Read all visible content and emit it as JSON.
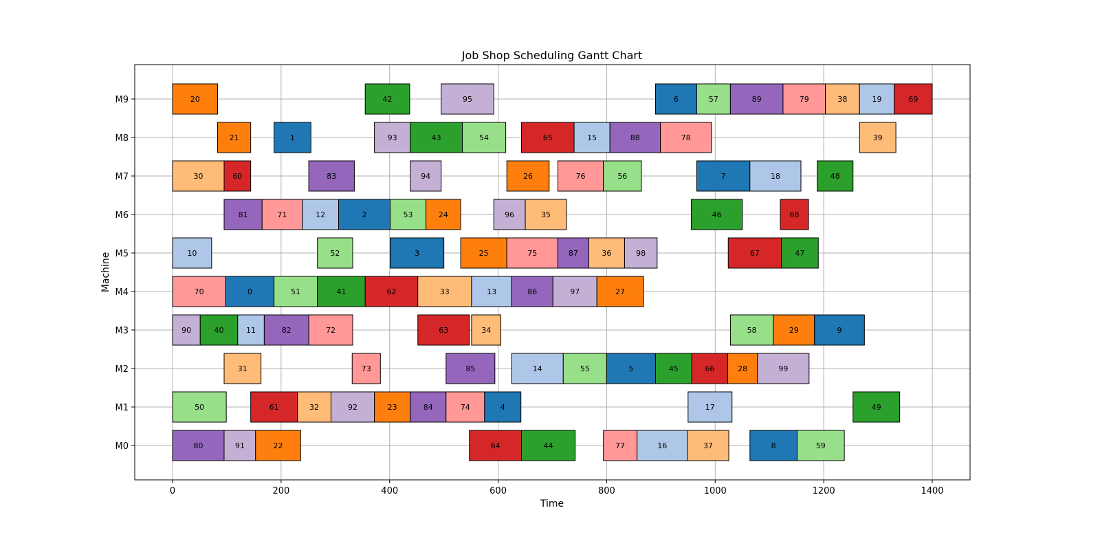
{
  "chart_data": {
    "type": "gantt",
    "title": "Job Shop Scheduling Gantt Chart",
    "xlabel": "Time",
    "ylabel": "Machine",
    "xlim": [
      -70,
      1470
    ],
    "x_ticks": [
      0,
      200,
      400,
      600,
      800,
      1000,
      1200,
      1400
    ],
    "machines": [
      "M0",
      "M1",
      "M2",
      "M3",
      "M4",
      "M5",
      "M6",
      "M7",
      "M8",
      "M9"
    ],
    "grid": true,
    "tasks": [
      {
        "machine": "M0",
        "job": "80",
        "start": 0,
        "end": 95,
        "color": "#9467bd"
      },
      {
        "machine": "M0",
        "job": "91",
        "start": 95,
        "end": 153,
        "color": "#c5b0d5"
      },
      {
        "machine": "M0",
        "job": "22",
        "start": 153,
        "end": 236,
        "color": "#ff7f0e"
      },
      {
        "machine": "M0",
        "job": "64",
        "start": 547,
        "end": 643,
        "color": "#d62728"
      },
      {
        "machine": "M0",
        "job": "44",
        "start": 643,
        "end": 742,
        "color": "#2ca02c"
      },
      {
        "machine": "M0",
        "job": "77",
        "start": 794,
        "end": 856,
        "color": "#ff9896"
      },
      {
        "machine": "M0",
        "job": "16",
        "start": 856,
        "end": 949,
        "color": "#aec7e8"
      },
      {
        "machine": "M0",
        "job": "37",
        "start": 949,
        "end": 1025,
        "color": "#ffbb78"
      },
      {
        "machine": "M0",
        "job": "8",
        "start": 1064,
        "end": 1151,
        "color": "#1f77b4"
      },
      {
        "machine": "M0",
        "job": "59",
        "start": 1151,
        "end": 1238,
        "color": "#98df8a"
      },
      {
        "machine": "M1",
        "job": "50",
        "start": 0,
        "end": 99,
        "color": "#98df8a"
      },
      {
        "machine": "M1",
        "job": "61",
        "start": 144,
        "end": 230,
        "color": "#d62728"
      },
      {
        "machine": "M1",
        "job": "32",
        "start": 230,
        "end": 292,
        "color": "#ffbb78"
      },
      {
        "machine": "M1",
        "job": "92",
        "start": 292,
        "end": 372,
        "color": "#c5b0d5"
      },
      {
        "machine": "M1",
        "job": "23",
        "start": 372,
        "end": 438,
        "color": "#ff7f0e"
      },
      {
        "machine": "M1",
        "job": "84",
        "start": 438,
        "end": 504,
        "color": "#9467bd"
      },
      {
        "machine": "M1",
        "job": "74",
        "start": 504,
        "end": 575,
        "color": "#ff9896"
      },
      {
        "machine": "M1",
        "job": "4",
        "start": 575,
        "end": 642,
        "color": "#1f77b4"
      },
      {
        "machine": "M1",
        "job": "17",
        "start": 950,
        "end": 1031,
        "color": "#aec7e8"
      },
      {
        "machine": "M1",
        "job": "49",
        "start": 1254,
        "end": 1340,
        "color": "#2ca02c"
      },
      {
        "machine": "M2",
        "job": "31",
        "start": 95,
        "end": 163,
        "color": "#ffbb78"
      },
      {
        "machine": "M2",
        "job": "73",
        "start": 331,
        "end": 383,
        "color": "#ff9896"
      },
      {
        "machine": "M2",
        "job": "85",
        "start": 504,
        "end": 594,
        "color": "#9467bd"
      },
      {
        "machine": "M2",
        "job": "14",
        "start": 625,
        "end": 720,
        "color": "#aec7e8"
      },
      {
        "machine": "M2",
        "job": "55",
        "start": 720,
        "end": 800,
        "color": "#98df8a"
      },
      {
        "machine": "M2",
        "job": "5",
        "start": 800,
        "end": 890,
        "color": "#1f77b4"
      },
      {
        "machine": "M2",
        "job": "45",
        "start": 890,
        "end": 957,
        "color": "#2ca02c"
      },
      {
        "machine": "M2",
        "job": "66",
        "start": 957,
        "end": 1023,
        "color": "#d62728"
      },
      {
        "machine": "M2",
        "job": "28",
        "start": 1023,
        "end": 1078,
        "color": "#ff7f0e"
      },
      {
        "machine": "M2",
        "job": "99",
        "start": 1078,
        "end": 1173,
        "color": "#c5b0d5"
      },
      {
        "machine": "M3",
        "job": "90",
        "start": 0,
        "end": 51,
        "color": "#c5b0d5"
      },
      {
        "machine": "M3",
        "job": "40",
        "start": 51,
        "end": 120,
        "color": "#2ca02c"
      },
      {
        "machine": "M3",
        "job": "11",
        "start": 120,
        "end": 169,
        "color": "#aec7e8"
      },
      {
        "machine": "M3",
        "job": "82",
        "start": 169,
        "end": 251,
        "color": "#9467bd"
      },
      {
        "machine": "M3",
        "job": "72",
        "start": 251,
        "end": 332,
        "color": "#ff9896"
      },
      {
        "machine": "M3",
        "job": "63",
        "start": 452,
        "end": 547,
        "color": "#d62728"
      },
      {
        "machine": "M3",
        "job": "34",
        "start": 551,
        "end": 605,
        "color": "#ffbb78"
      },
      {
        "machine": "M3",
        "job": "58",
        "start": 1028,
        "end": 1107,
        "color": "#98df8a"
      },
      {
        "machine": "M3",
        "job": "29",
        "start": 1107,
        "end": 1183,
        "color": "#ff7f0e"
      },
      {
        "machine": "M3",
        "job": "9",
        "start": 1183,
        "end": 1275,
        "color": "#1f77b4"
      },
      {
        "machine": "M4",
        "job": "70",
        "start": 0,
        "end": 98,
        "color": "#ff9896"
      },
      {
        "machine": "M4",
        "job": "0",
        "start": 98,
        "end": 187,
        "color": "#1f77b4"
      },
      {
        "machine": "M4",
        "job": "51",
        "start": 187,
        "end": 267,
        "color": "#98df8a"
      },
      {
        "machine": "M4",
        "job": "41",
        "start": 267,
        "end": 355,
        "color": "#2ca02c"
      },
      {
        "machine": "M4",
        "job": "62",
        "start": 355,
        "end": 452,
        "color": "#d62728"
      },
      {
        "machine": "M4",
        "job": "33",
        "start": 452,
        "end": 551,
        "color": "#ffbb78"
      },
      {
        "machine": "M4",
        "job": "13",
        "start": 551,
        "end": 625,
        "color": "#aec7e8"
      },
      {
        "machine": "M4",
        "job": "86",
        "start": 625,
        "end": 701,
        "color": "#9467bd"
      },
      {
        "machine": "M4",
        "job": "97",
        "start": 701,
        "end": 782,
        "color": "#c5b0d5"
      },
      {
        "machine": "M4",
        "job": "27",
        "start": 782,
        "end": 868,
        "color": "#ff7f0e"
      },
      {
        "machine": "M5",
        "job": "10",
        "start": 0,
        "end": 72,
        "color": "#aec7e8"
      },
      {
        "machine": "M5",
        "job": "52",
        "start": 267,
        "end": 332,
        "color": "#98df8a"
      },
      {
        "machine": "M5",
        "job": "3",
        "start": 401,
        "end": 500,
        "color": "#1f77b4"
      },
      {
        "machine": "M5",
        "job": "25",
        "start": 531,
        "end": 616,
        "color": "#ff7f0e"
      },
      {
        "machine": "M5",
        "job": "75",
        "start": 616,
        "end": 710,
        "color": "#ff9896"
      },
      {
        "machine": "M5",
        "job": "87",
        "start": 710,
        "end": 767,
        "color": "#9467bd"
      },
      {
        "machine": "M5",
        "job": "36",
        "start": 767,
        "end": 833,
        "color": "#ffbb78"
      },
      {
        "machine": "M5",
        "job": "98",
        "start": 833,
        "end": 893,
        "color": "#c5b0d5"
      },
      {
        "machine": "M5",
        "job": "67",
        "start": 1024,
        "end": 1122,
        "color": "#d62728"
      },
      {
        "machine": "M5",
        "job": "47",
        "start": 1122,
        "end": 1190,
        "color": "#2ca02c"
      },
      {
        "machine": "M6",
        "job": "81",
        "start": 95,
        "end": 165,
        "color": "#9467bd"
      },
      {
        "machine": "M6",
        "job": "71",
        "start": 165,
        "end": 239,
        "color": "#ff9896"
      },
      {
        "machine": "M6",
        "job": "12",
        "start": 239,
        "end": 306,
        "color": "#aec7e8"
      },
      {
        "machine": "M6",
        "job": "2",
        "start": 306,
        "end": 401,
        "color": "#1f77b4"
      },
      {
        "machine": "M6",
        "job": "53",
        "start": 401,
        "end": 467,
        "color": "#98df8a"
      },
      {
        "machine": "M6",
        "job": "24",
        "start": 467,
        "end": 531,
        "color": "#ff7f0e"
      },
      {
        "machine": "M6",
        "job": "96",
        "start": 592,
        "end": 650,
        "color": "#c5b0d5"
      },
      {
        "machine": "M6",
        "job": "35",
        "start": 650,
        "end": 726,
        "color": "#ffbb78"
      },
      {
        "machine": "M6",
        "job": "46",
        "start": 956,
        "end": 1050,
        "color": "#2ca02c"
      },
      {
        "machine": "M6",
        "job": "68",
        "start": 1120,
        "end": 1172,
        "color": "#d62728"
      },
      {
        "machine": "M7",
        "job": "30",
        "start": 0,
        "end": 95,
        "color": "#ffbb78"
      },
      {
        "machine": "M7",
        "job": "60",
        "start": 95,
        "end": 144,
        "color": "#d62728"
      },
      {
        "machine": "M7",
        "job": "83",
        "start": 251,
        "end": 335,
        "color": "#9467bd"
      },
      {
        "machine": "M7",
        "job": "94",
        "start": 438,
        "end": 495,
        "color": "#c5b0d5"
      },
      {
        "machine": "M7",
        "job": "26",
        "start": 616,
        "end": 694,
        "color": "#ff7f0e"
      },
      {
        "machine": "M7",
        "job": "76",
        "start": 710,
        "end": 794,
        "color": "#ff9896"
      },
      {
        "machine": "M7",
        "job": "56",
        "start": 794,
        "end": 864,
        "color": "#98df8a"
      },
      {
        "machine": "M7",
        "job": "7",
        "start": 966,
        "end": 1064,
        "color": "#1f77b4"
      },
      {
        "machine": "M7",
        "job": "18",
        "start": 1064,
        "end": 1158,
        "color": "#aec7e8"
      },
      {
        "machine": "M7",
        "job": "48",
        "start": 1188,
        "end": 1254,
        "color": "#2ca02c"
      },
      {
        "machine": "M8",
        "job": "21",
        "start": 83,
        "end": 144,
        "color": "#ff7f0e"
      },
      {
        "machine": "M8",
        "job": "1",
        "start": 187,
        "end": 255,
        "color": "#1f77b4"
      },
      {
        "machine": "M8",
        "job": "93",
        "start": 372,
        "end": 438,
        "color": "#c5b0d5"
      },
      {
        "machine": "M8",
        "job": "43",
        "start": 438,
        "end": 534,
        "color": "#2ca02c"
      },
      {
        "machine": "M8",
        "job": "54",
        "start": 534,
        "end": 614,
        "color": "#98df8a"
      },
      {
        "machine": "M8",
        "job": "65",
        "start": 643,
        "end": 740,
        "color": "#d62728"
      },
      {
        "machine": "M8",
        "job": "15",
        "start": 740,
        "end": 806,
        "color": "#aec7e8"
      },
      {
        "machine": "M8",
        "job": "88",
        "start": 806,
        "end": 899,
        "color": "#9467bd"
      },
      {
        "machine": "M8",
        "job": "78",
        "start": 899,
        "end": 993,
        "color": "#ff9896"
      },
      {
        "machine": "M8",
        "job": "39",
        "start": 1266,
        "end": 1333,
        "color": "#ffbb78"
      },
      {
        "machine": "M9",
        "job": "20",
        "start": 0,
        "end": 83,
        "color": "#ff7f0e"
      },
      {
        "machine": "M9",
        "job": "42",
        "start": 355,
        "end": 437,
        "color": "#2ca02c"
      },
      {
        "machine": "M9",
        "job": "95",
        "start": 495,
        "end": 592,
        "color": "#c5b0d5"
      },
      {
        "machine": "M9",
        "job": "6",
        "start": 890,
        "end": 966,
        "color": "#1f77b4"
      },
      {
        "machine": "M9",
        "job": "57",
        "start": 966,
        "end": 1028,
        "color": "#98df8a"
      },
      {
        "machine": "M9",
        "job": "89",
        "start": 1028,
        "end": 1125,
        "color": "#9467bd"
      },
      {
        "machine": "M9",
        "job": "79",
        "start": 1125,
        "end": 1203,
        "color": "#ff9896"
      },
      {
        "machine": "M9",
        "job": "38",
        "start": 1203,
        "end": 1266,
        "color": "#ffbb78"
      },
      {
        "machine": "M9",
        "job": "19",
        "start": 1266,
        "end": 1330,
        "color": "#aec7e8"
      },
      {
        "machine": "M9",
        "job": "69",
        "start": 1330,
        "end": 1400,
        "color": "#d62728"
      }
    ]
  }
}
